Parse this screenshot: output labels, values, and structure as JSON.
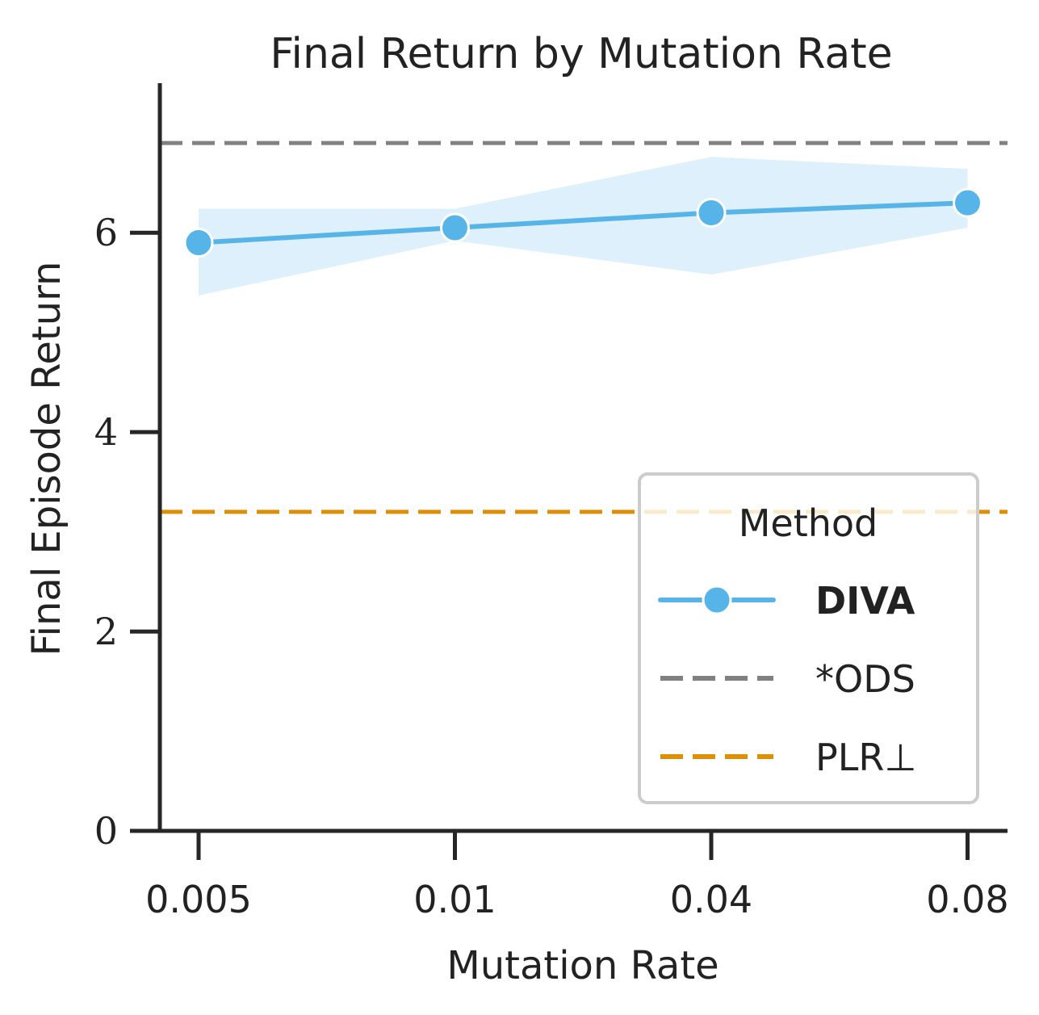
{
  "chart_data": {
    "type": "line",
    "title": "Final Return by Mutation Rate",
    "xlabel": "Mutation Rate",
    "ylabel": "Final Episode Return",
    "categories": [
      "0.005",
      "0.01",
      "0.04",
      "0.08"
    ],
    "ylim": [
      0,
      7.5
    ],
    "yticks": [
      "0",
      "2",
      "4",
      "6"
    ],
    "grid": false,
    "legend": {
      "title": "Method",
      "placement": "lower-right",
      "entries": [
        "DIVA",
        "*ODS",
        "PLR⊥"
      ]
    },
    "series": [
      {
        "name": "DIVA",
        "style": "solid-marker",
        "color": "#56b4e9",
        "values": [
          5.9,
          6.05,
          6.2,
          6.3
        ],
        "ci_low": [
          5.37,
          5.92,
          5.58,
          6.05
        ],
        "ci_high": [
          6.24,
          6.24,
          6.76,
          6.64
        ]
      },
      {
        "name": "*ODS",
        "style": "dashed",
        "color": "#808080",
        "value": 6.9
      },
      {
        "name": "PLR⊥",
        "style": "dashed",
        "color": "#de8f05",
        "value": 3.2
      }
    ]
  }
}
